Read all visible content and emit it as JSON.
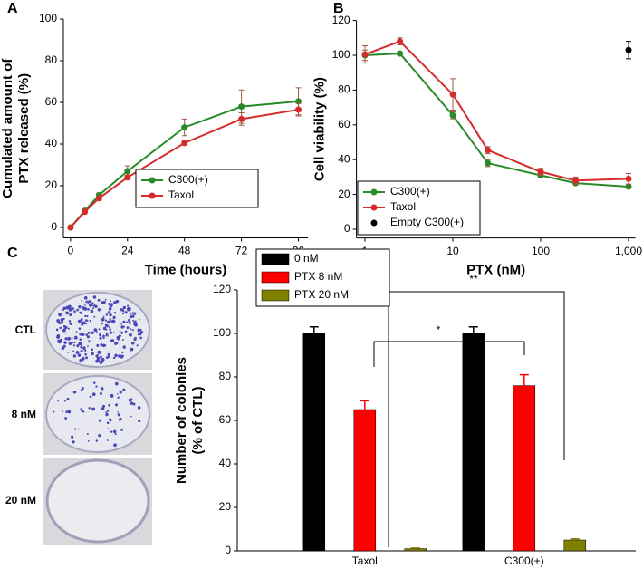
{
  "chart_data": [
    {
      "type": "line",
      "panel": "A",
      "xlabel": "Time (hours)",
      "ylabel": [
        "Cumulated amount of",
        "PTX released (%)"
      ],
      "x": [
        0,
        6,
        12,
        24,
        48,
        72,
        96
      ],
      "series": [
        {
          "name": "C300(+)",
          "color": "#2a8a2a",
          "values": [
            0,
            8,
            15.5,
            27,
            48,
            58,
            60.5
          ],
          "errors": [
            0.5,
            0.5,
            1,
            2.5,
            4,
            8,
            6.5
          ]
        },
        {
          "name": "Taxol",
          "color": "#d62b2b",
          "values": [
            0,
            7.5,
            14,
            24,
            40.5,
            52,
            56.5
          ],
          "errors": [
            0.5,
            1,
            1,
            1,
            1,
            3,
            3
          ]
        }
      ],
      "xlim": [
        -3,
        100
      ],
      "ylim": [
        -5,
        100
      ],
      "xticks": [
        0,
        24,
        48,
        72,
        96
      ],
      "yticks": [
        0,
        20,
        40,
        60,
        80,
        100
      ],
      "legend": "lower right"
    },
    {
      "type": "line",
      "panel": "B",
      "xlabel": "PTX (nM)",
      "ylabel": [
        "Cell viability (%)"
      ],
      "x": [
        1,
        2.5,
        10,
        25,
        100,
        250,
        1000
      ],
      "xscale": "log",
      "series": [
        {
          "name": "C300(+)",
          "color": "#2a8a2a",
          "values": [
            100,
            101,
            65.5,
            38,
            31,
            26.5,
            24.5
          ],
          "errors": [
            3,
            1,
            2,
            2,
            1,
            1,
            1
          ]
        },
        {
          "name": "Taxol",
          "color": "#d62b2b",
          "values": [
            100.5,
            108,
            77.5,
            45.5,
            33,
            28,
            29
          ],
          "errors": [
            5,
            2,
            9,
            2,
            2,
            2,
            3
          ]
        },
        {
          "name": "Empty C300(+)",
          "color": "#000000",
          "line": false,
          "values": [
            null,
            null,
            null,
            null,
            null,
            null,
            103
          ],
          "errors": [
            null,
            null,
            null,
            null,
            null,
            null,
            5
          ]
        }
      ],
      "xlim": [
        0.8,
        1200
      ],
      "ylim": [
        -5,
        120
      ],
      "xticks": [
        1,
        10,
        100,
        {
          "value": 1000,
          "label": "1,000"
        }
      ],
      "yticks": [
        0,
        20,
        40,
        60,
        80,
        100,
        120
      ],
      "legend": "lower left"
    },
    {
      "type": "bar",
      "panel": "C",
      "ylabel": [
        "Number of colonies",
        "(% of CTL)"
      ],
      "categories": [
        "Taxol",
        "C300(+)"
      ],
      "series": [
        {
          "name": "0 nM",
          "color": "#000000",
          "values": [
            100,
            100
          ],
          "errors": [
            3,
            3
          ]
        },
        {
          "name": "PTX 8 nM",
          "color": "#ff0000",
          "values": [
            65,
            76
          ],
          "errors": [
            4,
            5
          ]
        },
        {
          "name": "PTX 20 nM",
          "color": "#808000",
          "values": [
            1,
            5
          ],
          "errors": [
            0.3,
            0.5
          ]
        }
      ],
      "ylim": [
        0,
        120
      ],
      "yticks": [
        0,
        20,
        40,
        60,
        80,
        100,
        120
      ],
      "legend": "upper left",
      "annotations": [
        "*",
        "**"
      ],
      "image_labels": [
        "CTL",
        "8 nM",
        "20 nM"
      ]
    }
  ]
}
